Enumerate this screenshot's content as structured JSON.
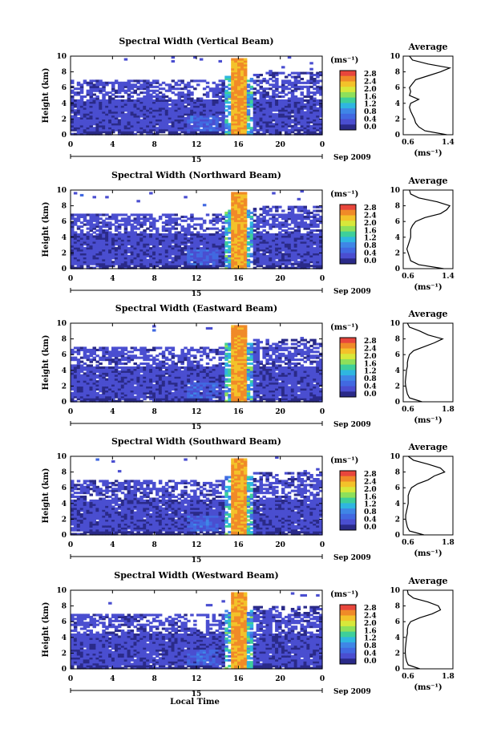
{
  "colorbar": {
    "unit_label": "(ms⁻¹)",
    "ticks": [
      "2.8",
      "2.4",
      "2.0",
      "1.6",
      "1.2",
      "0.8",
      "0.4",
      "0.0"
    ],
    "colors": [
      "#e8463c",
      "#f08a28",
      "#f3c22a",
      "#d8e83a",
      "#8ee05a",
      "#3ecf9a",
      "#2fb6e0",
      "#3f86e6",
      "#4169e1",
      "#4a4ed0",
      "#2a2a88"
    ]
  },
  "x_axis": {
    "ticks": [
      "0",
      "4",
      "8",
      "12",
      "16",
      "20",
      "0"
    ],
    "date_day": "15",
    "date_label": "Sep 2009",
    "xlabel": "Local Time"
  },
  "y_axis": {
    "label": "Height (km)",
    "ticks": [
      "0",
      "2",
      "4",
      "6",
      "8",
      "10"
    ]
  },
  "average": {
    "title": "Average",
    "xlabel": "(ms⁻¹)"
  },
  "chart_data": [
    {
      "type": "heatmap",
      "title": "Spectral Width (Vertical Beam)",
      "xlabel": "",
      "ylabel": "Height (km)",
      "xlim": [
        0,
        24
      ],
      "ylim": [
        0,
        10
      ],
      "clim": [
        0,
        3.0
      ],
      "avg": {
        "xlim": [
          0.6,
          1.4
        ],
        "xticks": [
          "0.6",
          "1.4"
        ],
        "heights": [
          0,
          0.5,
          1,
          1.5,
          2,
          2.5,
          3,
          3.5,
          4,
          4.5,
          5,
          5.5,
          6,
          6.5,
          7,
          7.5,
          8,
          8.5,
          9,
          9.5,
          10
        ],
        "values": [
          1.3,
          0.95,
          0.85,
          0.8,
          0.78,
          0.75,
          0.72,
          0.7,
          0.72,
          0.85,
          0.7,
          0.72,
          0.7,
          0.75,
          0.8,
          1.0,
          1.2,
          1.35,
          1.0,
          0.75,
          0.7
        ]
      }
    },
    {
      "type": "heatmap",
      "title": "Spectral Width (Northward Beam)",
      "xlabel": "",
      "ylabel": "Height (km)",
      "xlim": [
        0,
        24
      ],
      "ylim": [
        0,
        10
      ],
      "clim": [
        0,
        3.0
      ],
      "avg": {
        "xlim": [
          0.6,
          1.4
        ],
        "xticks": [
          "0.6",
          "1.4"
        ],
        "heights": [
          0,
          0.5,
          1,
          1.5,
          2,
          2.5,
          3,
          3.5,
          4,
          4.5,
          5,
          5.5,
          6,
          6.5,
          7,
          7.5,
          8,
          8.5,
          9,
          9.5,
          10
        ],
        "values": [
          1.25,
          0.85,
          0.72,
          0.7,
          0.68,
          0.66,
          0.68,
          0.7,
          0.72,
          0.72,
          0.72,
          0.75,
          0.8,
          0.95,
          1.2,
          1.3,
          1.35,
          1.15,
          0.85,
          0.72,
          0.7
        ]
      }
    },
    {
      "type": "heatmap",
      "title": "Spectral Width (Eastward Beam)",
      "xlabel": "",
      "ylabel": "Height (km)",
      "xlim": [
        0,
        24
      ],
      "ylim": [
        0,
        10
      ],
      "clim": [
        0,
        3.0
      ],
      "avg": {
        "xlim": [
          0.6,
          1.8
        ],
        "xticks": [
          "0.6",
          "1.8"
        ],
        "heights": [
          0,
          0.5,
          1,
          1.5,
          2,
          2.5,
          3,
          3.5,
          4,
          4.5,
          5,
          5.5,
          6,
          6.5,
          7,
          7.5,
          8,
          8.5,
          9,
          9.5,
          10
        ],
        "values": [
          1.05,
          0.75,
          0.7,
          0.68,
          0.66,
          0.65,
          0.66,
          0.67,
          0.68,
          0.7,
          0.7,
          0.72,
          0.75,
          0.85,
          1.1,
          1.35,
          1.55,
          1.2,
          1.0,
          0.75,
          0.7
        ]
      }
    },
    {
      "type": "heatmap",
      "title": "Spectral Width (Southward Beam)",
      "xlabel": "",
      "ylabel": "Height (km)",
      "xlim": [
        0,
        24
      ],
      "ylim": [
        0,
        10
      ],
      "clim": [
        0,
        3.0
      ],
      "avg": {
        "xlim": [
          0.6,
          1.8
        ],
        "xticks": [
          "0.6",
          "1.8"
        ],
        "heights": [
          0,
          0.5,
          1,
          1.5,
          2,
          2.5,
          3,
          3.5,
          4,
          4.5,
          5,
          5.5,
          6,
          6.5,
          7,
          7.5,
          8,
          8.5,
          9,
          9.5,
          10
        ],
        "values": [
          1.1,
          0.75,
          0.7,
          0.68,
          0.66,
          0.66,
          0.68,
          0.7,
          0.72,
          0.72,
          0.72,
          0.75,
          0.8,
          0.95,
          1.2,
          1.35,
          1.6,
          1.5,
          1.2,
          0.85,
          0.72
        ]
      }
    },
    {
      "type": "heatmap",
      "title": "Spectral Width (Westward Beam)",
      "xlabel": "",
      "ylabel": "Height (km)",
      "xlim": [
        0,
        24
      ],
      "ylim": [
        0,
        10
      ],
      "clim": [
        0,
        3.0
      ],
      "avg": {
        "xlim": [
          0.6,
          1.8
        ],
        "xticks": [
          "0.6",
          "1.8"
        ],
        "heights": [
          0,
          0.5,
          1,
          1.5,
          2,
          2.5,
          3,
          3.5,
          4,
          4.5,
          5,
          5.5,
          6,
          6.5,
          7,
          7.5,
          8,
          8.5,
          9,
          9.5,
          10
        ],
        "values": [
          1.0,
          0.72,
          0.68,
          0.66,
          0.65,
          0.65,
          0.66,
          0.67,
          0.68,
          0.7,
          0.7,
          0.72,
          0.78,
          1.0,
          1.3,
          1.5,
          1.45,
          1.2,
          0.85,
          0.72,
          0.7
        ]
      }
    }
  ]
}
